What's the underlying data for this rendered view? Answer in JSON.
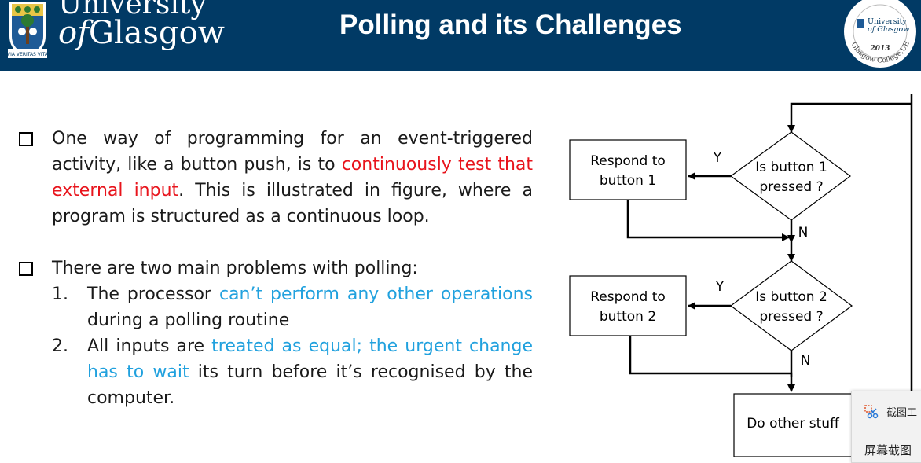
{
  "header": {
    "uni_line1": "University",
    "uni_line2_of": "of",
    "uni_line2_rest": "Glasgow",
    "motto": "VIA VERITAS VITA",
    "title": "Polling and its Challenges",
    "seal": {
      "name_line1": "University",
      "name_line2": "of Glasgow",
      "year": "2013",
      "ring_text": "Glasgow College,UESTC"
    },
    "colors": {
      "bar": "#013a65",
      "text": "#ffffff"
    }
  },
  "body": {
    "bullet1": {
      "seg1": "One way of programming for an event-triggered activity, like a button push, is to ",
      "seg2_red": "continuously test that external input",
      "seg3": ". This is illustrated in figure, where a program is structured as a continuous loop."
    },
    "bullet2": {
      "text": "There are two main problems with polling:",
      "items": [
        {
          "num": "1.",
          "seg1": "The processor ",
          "seg2_blue": "can’t perform any other operations",
          "seg3": " during a polling routine"
        },
        {
          "num": "2.",
          "seg1": "All inputs are ",
          "seg2_blue": "treated as equal; the urgent change has to wait",
          "seg3": " its turn before it’s recognised by the computer."
        }
      ]
    },
    "colors": {
      "emphasis_red": "#e8141c",
      "emphasis_blue": "#21a1de"
    }
  },
  "flowchart": {
    "respond1_l1": "Respond to",
    "respond1_l2": "button 1",
    "decision1_l1": "Is button 1",
    "decision1_l2": "pressed ?",
    "respond2_l1": "Respond to",
    "respond2_l2": "button 2",
    "decision2_l1": "Is button 2",
    "decision2_l2": "pressed ?",
    "other": "Do other stuff",
    "yes": "Y",
    "no": "N"
  },
  "popup": {
    "row1": "截图工",
    "row2": "屏幕截图",
    "icon": "scissors-icon"
  }
}
